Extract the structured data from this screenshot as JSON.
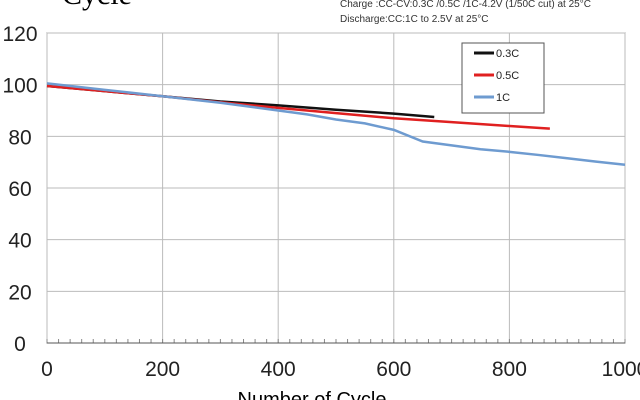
{
  "chart_data": {
    "type": "line",
    "title": "Cycle",
    "notes": [
      "Charge :CC-CV:0.3C /0.5C /1C-4.2V (1/50C cut) at 25°C",
      "Discharge:CC:1C  to 2.5V at 25°C"
    ],
    "xlabel": "Number of Cycle",
    "ylabel": "",
    "xlim": [
      0,
      1000
    ],
    "ylim": [
      0,
      120
    ],
    "xticks": [
      0,
      200,
      400,
      600,
      800,
      1000
    ],
    "yticks": [
      0,
      20,
      40,
      60,
      80,
      100,
      120
    ],
    "grid": true,
    "legend_position": "top-right",
    "series": [
      {
        "name": "0.3C",
        "color": "#111111",
        "x": [
          0,
          100,
          200,
          300,
          400,
          500,
          600,
          670
        ],
        "y": [
          99.5,
          97.5,
          95.5,
          93.5,
          92,
          90.3,
          88.8,
          87.5
        ]
      },
      {
        "name": "0.5C",
        "color": "#e02020",
        "x": [
          0,
          100,
          200,
          300,
          400,
          500,
          600,
          700,
          800,
          870
        ],
        "y": [
          99.5,
          97.5,
          95.5,
          93.2,
          91,
          89,
          87,
          85.5,
          84,
          83
        ]
      },
      {
        "name": "1C",
        "color": "#6e9bd0",
        "x": [
          0,
          100,
          200,
          300,
          400,
          450,
          500,
          550,
          600,
          650,
          700,
          750,
          800,
          850,
          900,
          950,
          1000
        ],
        "y": [
          100.5,
          98,
          95.5,
          93,
          90,
          88.5,
          86.5,
          85,
          82.5,
          78,
          76.5,
          75,
          74,
          72.8,
          71.5,
          70.2,
          69
        ]
      }
    ]
  }
}
